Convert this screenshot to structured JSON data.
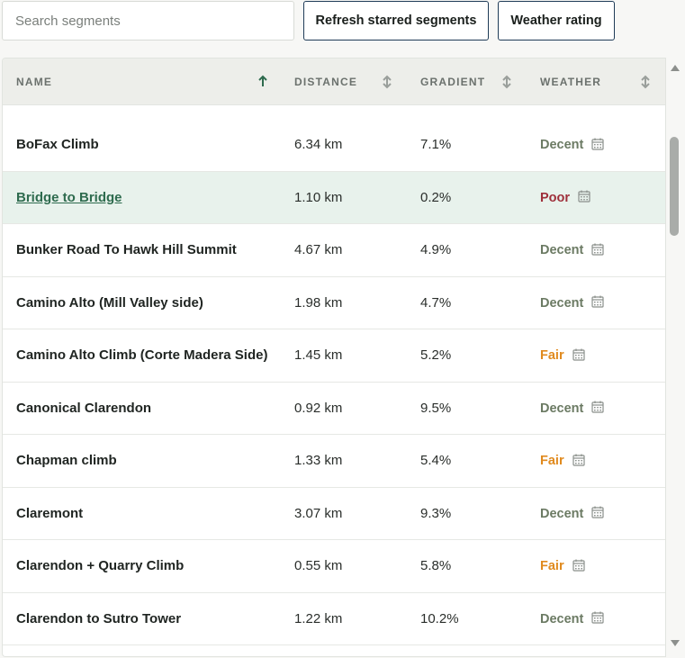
{
  "search": {
    "placeholder": "Search segments"
  },
  "toolbar": {
    "refresh_label": "Refresh starred segments",
    "weather_label": "Weather rating"
  },
  "table": {
    "columns": {
      "name": "NAME",
      "distance": "DISTANCE",
      "gradient": "GRADIENT",
      "weather": "WEATHER"
    },
    "sorted_column": "name",
    "sort_direction": "ascending",
    "rows": [
      {
        "name": "BoFax Climb",
        "distance": "6.34 km",
        "gradient": "7.1%",
        "weather": "Decent"
      },
      {
        "name": "Bridge to Bridge",
        "distance": "1.10 km",
        "gradient": "0.2%",
        "weather": "Poor"
      },
      {
        "name": "Bunker Road To Hawk Hill Summit",
        "distance": "4.67 km",
        "gradient": "4.9%",
        "weather": "Decent"
      },
      {
        "name": "Camino Alto (Mill Valley side)",
        "distance": "1.98 km",
        "gradient": "4.7%",
        "weather": "Decent"
      },
      {
        "name": "Camino Alto Climb (Corte Madera Side)",
        "distance": "1.45 km",
        "gradient": "5.2%",
        "weather": "Fair"
      },
      {
        "name": "Canonical Clarendon",
        "distance": "0.92 km",
        "gradient": "9.5%",
        "weather": "Decent"
      },
      {
        "name": "Chapman climb",
        "distance": "1.33 km",
        "gradient": "5.4%",
        "weather": "Fair"
      },
      {
        "name": "Claremont",
        "distance": "3.07 km",
        "gradient": "9.3%",
        "weather": "Decent"
      },
      {
        "name": "Clarendon + Quarry Climb",
        "distance": "0.55 km",
        "gradient": "5.8%",
        "weather": "Fair"
      },
      {
        "name": "Clarendon to Sutro Tower",
        "distance": "1.22 km",
        "gradient": "10.2%",
        "weather": "Decent"
      }
    ]
  },
  "colors": {
    "decent": "#6b7a63",
    "poor": "#9e2f3a",
    "fair": "#e08a1e",
    "link": "#2e6b4e",
    "highlight_row": "#e8f2ec",
    "sort_active": "#2e6b4e",
    "button_border": "#1f3b57"
  },
  "highlighted_row_index": 1,
  "icons": [
    "calendar-icon",
    "sort-ascending-icon",
    "sort-unsorted-icon",
    "scroll-up-icon",
    "scroll-down-icon"
  ]
}
